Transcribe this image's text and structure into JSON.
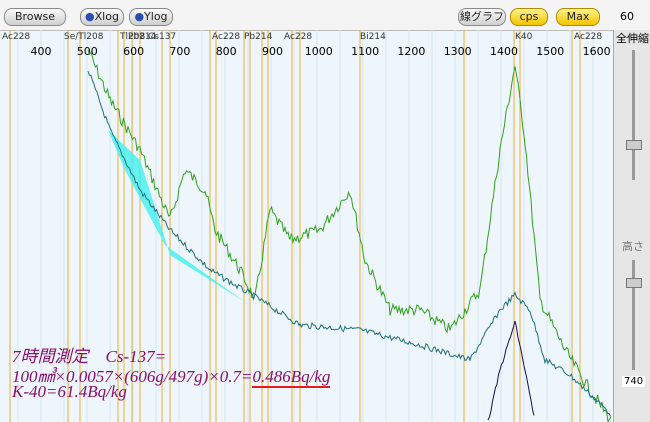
{
  "toolbar": {
    "browse": "Browse",
    "xlog": "Xlog",
    "ylog": "Ylog",
    "line_graph": "線グラフ",
    "cps": "cps",
    "max": "Max",
    "right_value": "60"
  },
  "axis": {
    "ticks": [
      "400",
      "500",
      "600",
      "700",
      "800",
      "900",
      "1000",
      "1100",
      "1200",
      "1300",
      "1400",
      "1500",
      "1600"
    ]
  },
  "nuclides": [
    "Ac228",
    "Se/Tl208",
    "Tl208",
    "Pb214",
    "Cs137",
    "Ac228",
    "Pb214",
    "Ac228",
    "Bi214",
    "K40",
    "Ac228"
  ],
  "side_panel": {
    "zoom_label": "全伸縮",
    "height_label": "高さ",
    "height_value": "740"
  },
  "annotation": {
    "line1": "7時間測定　Cs-137=",
    "line2_prefix": "100㎣×0.0057×(606g/497g)×0.7=",
    "line2_result": "0.486Bq/kg",
    "line3": "K-40=61.4Bq/kg"
  }
}
